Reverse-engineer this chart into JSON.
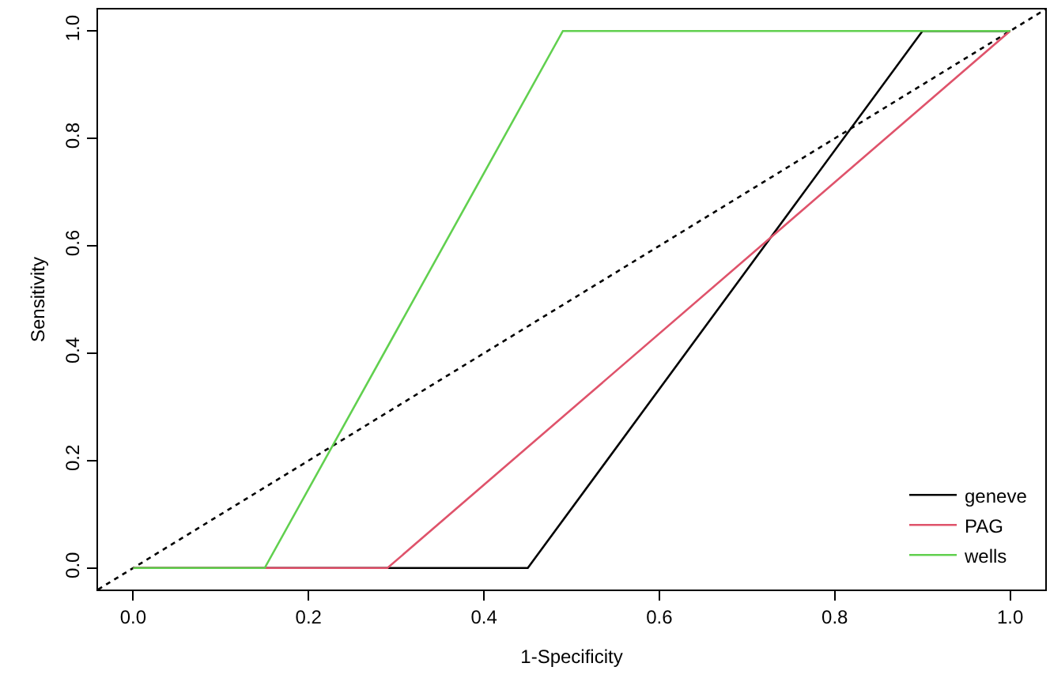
{
  "chart_data": {
    "type": "line",
    "xlabel": "1-Specificity",
    "ylabel": "Sensitivity",
    "xlim": [
      -0.04,
      1.04
    ],
    "ylim": [
      -0.04,
      1.04
    ],
    "xticks": [
      {
        "value": 0,
        "label": "0.0"
      },
      {
        "value": 0.2,
        "label": "0.2"
      },
      {
        "value": 0.4,
        "label": "0.4"
      },
      {
        "value": 0.6,
        "label": "0.6"
      },
      {
        "value": 0.8,
        "label": "0.8"
      },
      {
        "value": 1,
        "label": "1.0"
      }
    ],
    "yticks": [
      {
        "value": 0,
        "label": "0.0"
      },
      {
        "value": 0.2,
        "label": "0.2"
      },
      {
        "value": 0.4,
        "label": "0.4"
      },
      {
        "value": 0.6,
        "label": "0.6"
      },
      {
        "value": 0.8,
        "label": "0.8"
      },
      {
        "value": 1,
        "label": "1.0"
      }
    ],
    "grid": false,
    "legend": "bottom right",
    "marker": "none",
    "series": [
      {
        "x": [
          -0.04,
          1.04
        ],
        "values": [
          -0.04,
          1.04
        ],
        "color": "#000000",
        "line_style": "dotted"
      },
      {
        "name": "geneve",
        "x": [
          0,
          0.45,
          0.9,
          1
        ],
        "values": [
          0,
          0,
          1,
          1
        ],
        "color": "#000000",
        "line_style": "solid"
      },
      {
        "name": "PAG",
        "x": [
          0,
          0.29,
          1
        ],
        "values": [
          0,
          0,
          1
        ],
        "color": "#df536b",
        "line_style": "solid"
      },
      {
        "name": "wells",
        "x": [
          0,
          0.15,
          0.49,
          1
        ],
        "values": [
          0,
          0,
          1,
          1
        ],
        "color": "#61d04f",
        "line_style": "solid"
      }
    ]
  }
}
